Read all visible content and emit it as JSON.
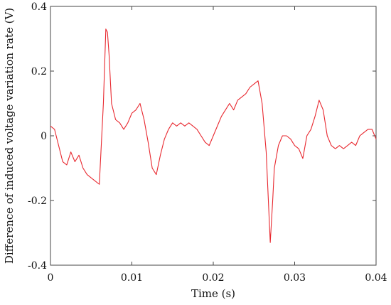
{
  "chart_data": {
    "type": "line",
    "xlabel": "Time (s)",
    "ylabel": "Difference of induced voltage variation rate (V)",
    "xlim": [
      0,
      0.04
    ],
    "ylim": [
      -0.4,
      0.4
    ],
    "xticks": [
      0,
      0.01,
      0.02,
      0.03,
      0.04
    ],
    "xtick_labels": [
      "0",
      "0.01",
      "0.02",
      "0.03",
      "0.04"
    ],
    "yticks": [
      -0.4,
      -0.2,
      0,
      0.2,
      0.4
    ],
    "ytick_labels": [
      "-0.4",
      "-0.2",
      "0",
      "0.2",
      "0.4"
    ],
    "grid": false,
    "series": [
      {
        "color": "#e8282f",
        "x": [
          0,
          0.0005,
          0.001,
          0.0015,
          0.002,
          0.0025,
          0.003,
          0.0035,
          0.004,
          0.0045,
          0.005,
          0.0055,
          0.006,
          0.0065,
          0.0068,
          0.007,
          0.0072,
          0.0075,
          0.008,
          0.0085,
          0.009,
          0.0095,
          0.01,
          0.0105,
          0.011,
          0.0115,
          0.012,
          0.0125,
          0.013,
          0.0135,
          0.014,
          0.0145,
          0.015,
          0.0155,
          0.016,
          0.0165,
          0.017,
          0.0175,
          0.018,
          0.0185,
          0.019,
          0.0195,
          0.02,
          0.0205,
          0.021,
          0.0215,
          0.022,
          0.0225,
          0.023,
          0.0235,
          0.024,
          0.0245,
          0.025,
          0.0255,
          0.026,
          0.0265,
          0.027,
          0.0273,
          0.0275,
          0.028,
          0.0285,
          0.029,
          0.0295,
          0.03,
          0.0305,
          0.031,
          0.0315,
          0.032,
          0.0325,
          0.033,
          0.0335,
          0.034,
          0.0345,
          0.035,
          0.0355,
          0.036,
          0.0365,
          0.037,
          0.0375,
          0.038,
          0.0385,
          0.039,
          0.0395,
          0.04
        ],
        "y": [
          0.03,
          0.02,
          -0.03,
          -0.08,
          -0.09,
          -0.05,
          -0.08,
          -0.06,
          -0.1,
          -0.12,
          -0.13,
          -0.14,
          -0.15,
          0.1,
          0.33,
          0.32,
          0.25,
          0.1,
          0.05,
          0.04,
          0.02,
          0.04,
          0.07,
          0.08,
          0.1,
          0.05,
          -0.02,
          -0.1,
          -0.12,
          -0.06,
          -0.01,
          0.02,
          0.04,
          0.03,
          0.04,
          0.03,
          0.04,
          0.03,
          0.02,
          0.0,
          -0.02,
          -0.03,
          0.0,
          0.03,
          0.06,
          0.08,
          0.1,
          0.08,
          0.11,
          0.12,
          0.13,
          0.15,
          0.16,
          0.17,
          0.1,
          -0.05,
          -0.33,
          -0.2,
          -0.1,
          -0.03,
          0.0,
          0.0,
          -0.01,
          -0.03,
          -0.04,
          -0.07,
          0.0,
          0.02,
          0.06,
          0.11,
          0.08,
          0.0,
          -0.03,
          -0.04,
          -0.03,
          -0.04,
          -0.03,
          -0.02,
          -0.03,
          0.0,
          0.01,
          0.02,
          0.02,
          -0.01
        ]
      }
    ]
  }
}
